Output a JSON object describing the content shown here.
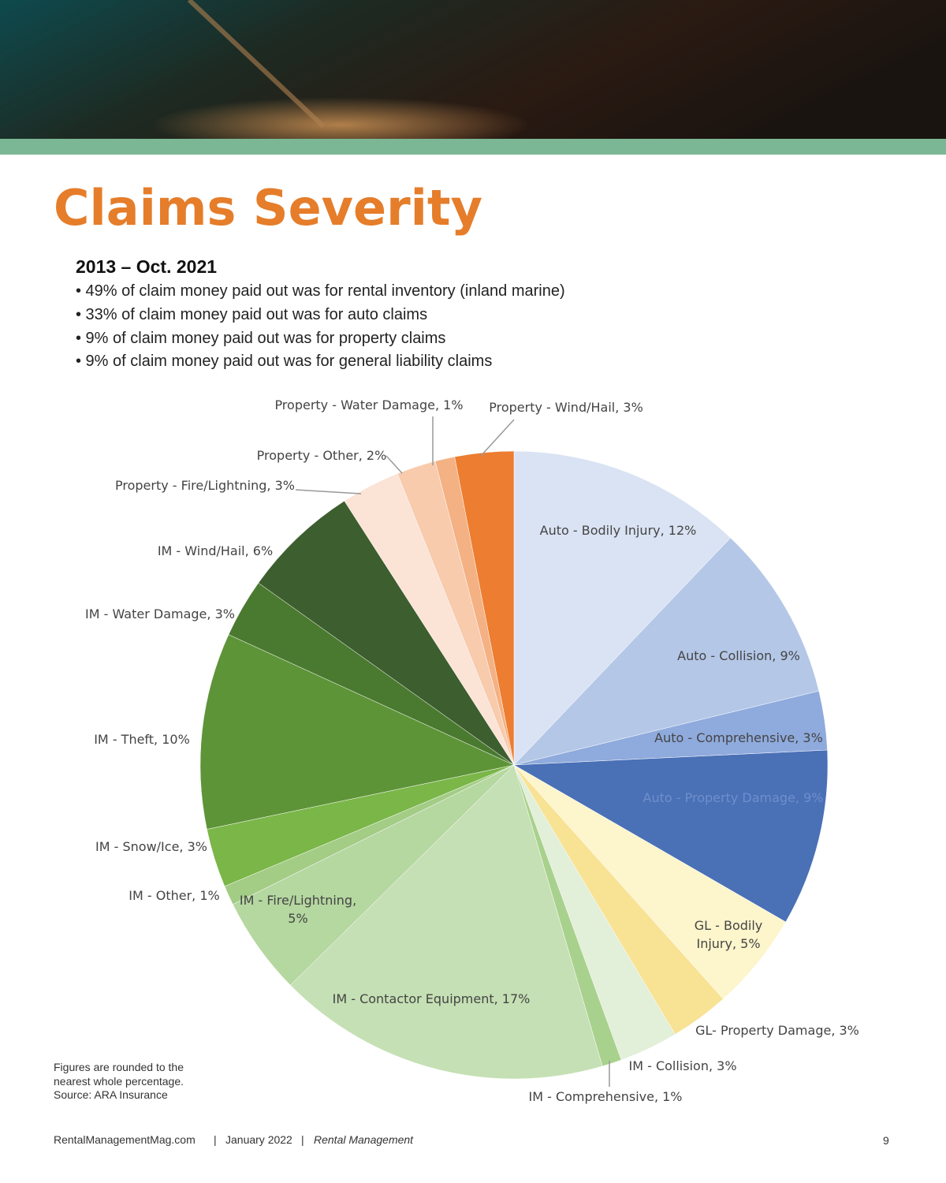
{
  "title": "Claims Severity",
  "subtitle": "2013 – Oct. 2021",
  "bullets": [
    "• 49% of claim money paid out was for rental inventory (inland marine)",
    "• 33% of claim money paid out was for auto claims",
    "• 9% of claim money paid out was for property claims",
    "• 9% of claim money paid out was for general liability claims"
  ],
  "notes": [
    "Figures are rounded to the",
    "nearest whole percentage.",
    "Source: ARA Insurance"
  ],
  "footer": {
    "site": "RentalManagementMag.com",
    "separator": "|",
    "date": "January 2022",
    "publication": "Rental Management",
    "page": "9"
  },
  "chart_data": {
    "type": "pie",
    "values": [
      12,
      9,
      3,
      9,
      5,
      3,
      3,
      1,
      17,
      5,
      1,
      3,
      10,
      3,
      6,
      3,
      2,
      1,
      3
    ],
    "value_labels": [
      "Auto - Bodily Injury, 12%",
      "Auto - Collision, 9%",
      "Auto - Comprehensive, 3%",
      "Auto - Property Damage, 9%",
      "GL - Bodily\nInjury, 5%",
      "GL- Property Damage, 3%",
      "IM - Collision, 3%",
      "IM - Comprehensive, 1%",
      "IM - Contactor Equipment, 17%",
      "IM - Fire/Lightning,\n5%",
      "IM - Other, 1%",
      "IM - Snow/Ice, 3%",
      "IM - Theft, 10%",
      "IM - Water Damage, 3%",
      "IM - Wind/Hail, 6%",
      "Property - Fire/Lightning, 3%",
      "Property - Other, 2%",
      "Property - Water Damage, 1%",
      "Property - Wind/Hail, 3%"
    ],
    "colors": [
      "#dae3f3",
      "#b4c7e7",
      "#8faadc",
      "#4a70b6",
      "#fdf5cc",
      "#f8e293",
      "#e2efd9",
      "#a9d18e",
      "#c5e0b4",
      "#b5d7a0",
      "#a3cc85",
      "#7ab648",
      "#5e9438",
      "#4a7a30",
      "#3d5e2e",
      "#fbe3d6",
      "#f8cbad",
      "#f4b183",
      "#ed7d31"
    ]
  }
}
